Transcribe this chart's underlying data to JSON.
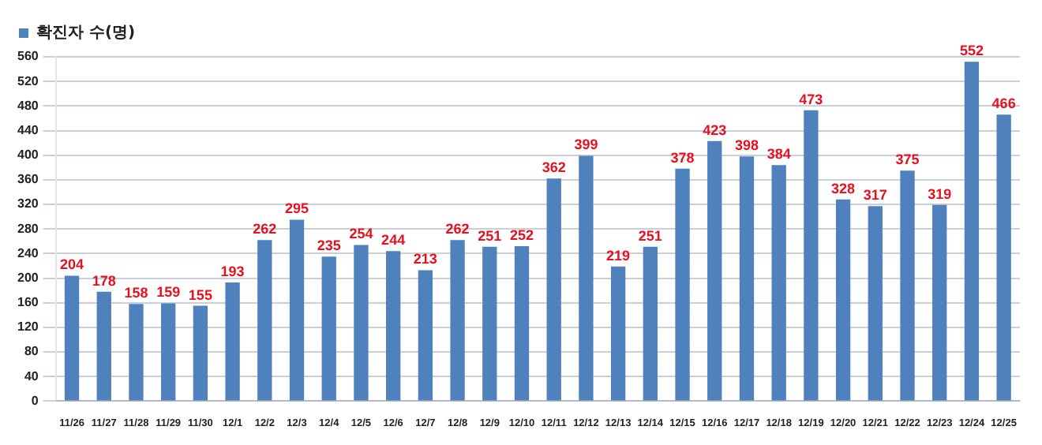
{
  "chart_data": {
    "type": "bar",
    "categories": [
      "11/26",
      "11/27",
      "11/28",
      "11/29",
      "11/30",
      "12/1",
      "12/2",
      "12/3",
      "12/4",
      "12/5",
      "12/6",
      "12/7",
      "12/8",
      "12/9",
      "12/10",
      "12/11",
      "12/12",
      "12/13",
      "12/14",
      "12/15",
      "12/16",
      "12/17",
      "12/18",
      "12/19",
      "12/20",
      "12/21",
      "12/22",
      "12/23",
      "12/24",
      "12/25"
    ],
    "series": [
      {
        "name": "확진자 수(명)",
        "color": "#4f81bd",
        "values": [
          204,
          178,
          158,
          159,
          155,
          193,
          262,
          295,
          235,
          254,
          244,
          213,
          262,
          251,
          252,
          362,
          399,
          219,
          251,
          378,
          423,
          398,
          384,
          473,
          328,
          317,
          375,
          319,
          552,
          466
        ]
      }
    ],
    "ylim": [
      0,
      560
    ],
    "yticks": [
      0,
      40,
      80,
      120,
      160,
      200,
      240,
      280,
      320,
      360,
      400,
      440,
      480,
      520,
      560
    ],
    "grid": "y",
    "legend": "top left",
    "data_labels": true
  }
}
